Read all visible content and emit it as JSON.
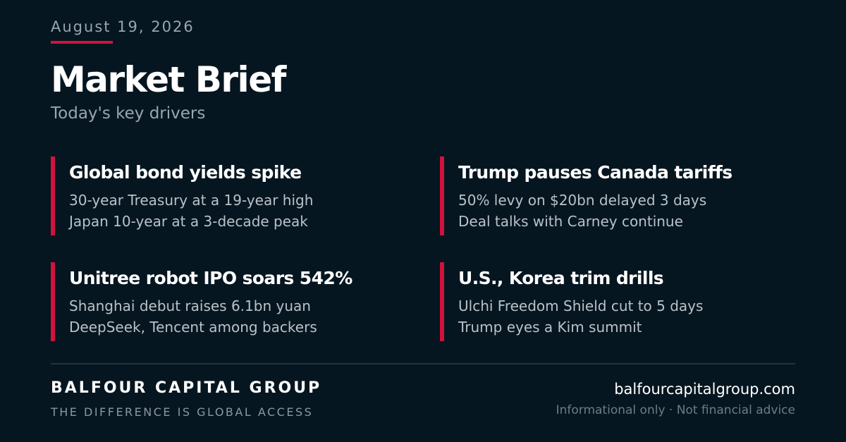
{
  "header": {
    "date": "August 19, 2026",
    "title": "Market Brief",
    "subtitle": "Today's key drivers"
  },
  "cards": [
    {
      "headline": "Global bond yields spike",
      "line1": "30-year Treasury at a 19-year high",
      "line2": "Japan 10-year at a 3-decade peak"
    },
    {
      "headline": "Trump pauses Canada tariffs",
      "line1": "50% levy on $20bn delayed 3 days",
      "line2": "Deal talks with Carney continue"
    },
    {
      "headline": "Unitree robot IPO soars 542%",
      "line1": "Shanghai debut raises 6.1bn yuan",
      "line2": "DeepSeek, Tencent among backers"
    },
    {
      "headline": "U.S., Korea trim drills",
      "line1": "Ulchi Freedom Shield cut to 5 days",
      "line2": "Trump eyes a Kim summit"
    }
  ],
  "footer": {
    "brand": "BALFOUR CAPITAL GROUP",
    "tagline": "THE DIFFERENCE IS GLOBAL ACCESS",
    "url": "balfourcapitalgroup.com",
    "disclaimer": "Informational only · Not financial advice"
  },
  "colors": {
    "background": "#061620",
    "accent": "#d1123f",
    "muted_text": "#9aa5ae"
  }
}
